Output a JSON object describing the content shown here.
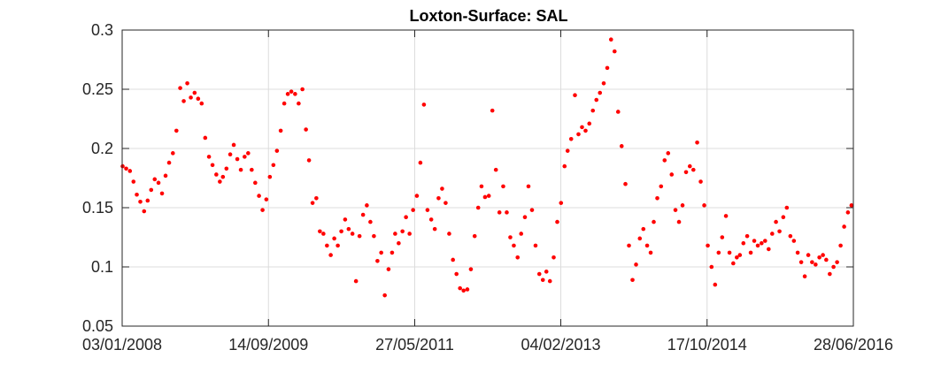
{
  "chart_data": {
    "type": "scatter",
    "title": "Loxton-Surface: SAL",
    "xlabel": "",
    "ylabel": "",
    "x_axis_type": "date",
    "xlim": [
      "2008-01-03",
      "2016-06-28"
    ],
    "ylim": [
      0.05,
      0.3
    ],
    "x_ticks": [
      "2008-01-03",
      "2009-09-14",
      "2011-05-27",
      "2013-02-04",
      "2014-10-17",
      "2016-06-28"
    ],
    "x_tick_labels": [
      "03/01/2008",
      "14/09/2009",
      "27/05/2011",
      "04/02/2013",
      "17/10/2014",
      "28/06/2016"
    ],
    "y_ticks": [
      0.05,
      0.1,
      0.15,
      0.2,
      0.25,
      0.3
    ],
    "y_tick_labels": [
      "0.05",
      "0.1",
      "0.15",
      "0.2",
      "0.25",
      "0.3"
    ],
    "grid": true,
    "marker_color": "#ff0000",
    "series": [
      {
        "points": [
          [
            "2008-01-05",
            0.185
          ],
          [
            "2008-01-20",
            0.183
          ],
          [
            "2008-02-05",
            0.181
          ],
          [
            "2008-02-20",
            0.172
          ],
          [
            "2008-03-05",
            0.161
          ],
          [
            "2008-03-20",
            0.155
          ],
          [
            "2008-04-05",
            0.147
          ],
          [
            "2008-04-20",
            0.156
          ],
          [
            "2008-05-05",
            0.165
          ],
          [
            "2008-05-20",
            0.174
          ],
          [
            "2008-06-05",
            0.171
          ],
          [
            "2008-06-20",
            0.162
          ],
          [
            "2008-07-05",
            0.177
          ],
          [
            "2008-07-20",
            0.188
          ],
          [
            "2008-08-05",
            0.196
          ],
          [
            "2008-08-20",
            0.215
          ],
          [
            "2008-09-05",
            0.251
          ],
          [
            "2008-09-20",
            0.24
          ],
          [
            "2008-10-05",
            0.255
          ],
          [
            "2008-10-20",
            0.243
          ],
          [
            "2008-11-05",
            0.247
          ],
          [
            "2008-11-20",
            0.242
          ],
          [
            "2008-12-05",
            0.238
          ],
          [
            "2008-12-20",
            0.209
          ],
          [
            "2009-01-05",
            0.193
          ],
          [
            "2009-01-20",
            0.186
          ],
          [
            "2009-02-05",
            0.178
          ],
          [
            "2009-02-20",
            0.172
          ],
          [
            "2009-03-05",
            0.176
          ],
          [
            "2009-03-20",
            0.183
          ],
          [
            "2009-04-05",
            0.195
          ],
          [
            "2009-04-20",
            0.203
          ],
          [
            "2009-05-05",
            0.191
          ],
          [
            "2009-05-20",
            0.182
          ],
          [
            "2009-06-05",
            0.193
          ],
          [
            "2009-06-20",
            0.196
          ],
          [
            "2009-07-05",
            0.182
          ],
          [
            "2009-07-20",
            0.171
          ],
          [
            "2009-08-05",
            0.16
          ],
          [
            "2009-08-20",
            0.148
          ],
          [
            "2009-09-05",
            0.157
          ],
          [
            "2009-09-20",
            0.176
          ],
          [
            "2009-10-05",
            0.186
          ],
          [
            "2009-10-20",
            0.198
          ],
          [
            "2009-11-05",
            0.215
          ],
          [
            "2009-11-20",
            0.238
          ],
          [
            "2009-12-05",
            0.246
          ],
          [
            "2009-12-20",
            0.248
          ],
          [
            "2010-01-05",
            0.246
          ],
          [
            "2010-01-20",
            0.238
          ],
          [
            "2010-02-05",
            0.25
          ],
          [
            "2010-02-20",
            0.216
          ],
          [
            "2010-03-05",
            0.19
          ],
          [
            "2010-03-20",
            0.154
          ],
          [
            "2010-04-05",
            0.158
          ],
          [
            "2010-04-20",
            0.13
          ],
          [
            "2010-05-05",
            0.128
          ],
          [
            "2010-05-20",
            0.118
          ],
          [
            "2010-06-05",
            0.11
          ],
          [
            "2010-06-20",
            0.124
          ],
          [
            "2010-07-05",
            0.118
          ],
          [
            "2010-07-20",
            0.13
          ],
          [
            "2010-08-05",
            0.14
          ],
          [
            "2010-08-20",
            0.132
          ],
          [
            "2010-09-05",
            0.128
          ],
          [
            "2010-09-20",
            0.088
          ],
          [
            "2010-10-05",
            0.126
          ],
          [
            "2010-10-20",
            0.144
          ],
          [
            "2010-11-05",
            0.152
          ],
          [
            "2010-11-20",
            0.138
          ],
          [
            "2010-12-05",
            0.126
          ],
          [
            "2010-12-20",
            0.105
          ],
          [
            "2011-01-05",
            0.112
          ],
          [
            "2011-01-20",
            0.076
          ],
          [
            "2011-02-05",
            0.098
          ],
          [
            "2011-02-20",
            0.112
          ],
          [
            "2011-03-05",
            0.128
          ],
          [
            "2011-03-20",
            0.12
          ],
          [
            "2011-04-05",
            0.13
          ],
          [
            "2011-04-20",
            0.142
          ],
          [
            "2011-05-05",
            0.128
          ],
          [
            "2011-05-20",
            0.148
          ],
          [
            "2011-06-05",
            0.16
          ],
          [
            "2011-06-20",
            0.188
          ],
          [
            "2011-07-05",
            0.237
          ],
          [
            "2011-07-20",
            0.148
          ],
          [
            "2011-08-05",
            0.14
          ],
          [
            "2011-08-20",
            0.132
          ],
          [
            "2011-09-05",
            0.158
          ],
          [
            "2011-09-20",
            0.166
          ],
          [
            "2011-10-05",
            0.154
          ],
          [
            "2011-10-20",
            0.128
          ],
          [
            "2011-11-05",
            0.106
          ],
          [
            "2011-11-20",
            0.094
          ],
          [
            "2011-12-05",
            0.082
          ],
          [
            "2011-12-20",
            0.08
          ],
          [
            "2012-01-05",
            0.081
          ],
          [
            "2012-01-20",
            0.098
          ],
          [
            "2012-02-05",
            0.126
          ],
          [
            "2012-02-20",
            0.15
          ],
          [
            "2012-03-05",
            0.168
          ],
          [
            "2012-03-20",
            0.159
          ],
          [
            "2012-04-05",
            0.16
          ],
          [
            "2012-04-20",
            0.232
          ],
          [
            "2012-05-05",
            0.182
          ],
          [
            "2012-05-20",
            0.146
          ],
          [
            "2012-06-05",
            0.168
          ],
          [
            "2012-06-20",
            0.146
          ],
          [
            "2012-07-05",
            0.125
          ],
          [
            "2012-07-20",
            0.118
          ],
          [
            "2012-08-05",
            0.108
          ],
          [
            "2012-08-20",
            0.128
          ],
          [
            "2012-09-05",
            0.142
          ],
          [
            "2012-09-20",
            0.168
          ],
          [
            "2012-10-05",
            0.148
          ],
          [
            "2012-10-20",
            0.118
          ],
          [
            "2012-11-05",
            0.094
          ],
          [
            "2012-11-20",
            0.089
          ],
          [
            "2012-12-05",
            0.096
          ],
          [
            "2012-12-20",
            0.088
          ],
          [
            "2013-01-05",
            0.108
          ],
          [
            "2013-01-20",
            0.138
          ],
          [
            "2013-02-05",
            0.154
          ],
          [
            "2013-02-20",
            0.185
          ],
          [
            "2013-03-05",
            0.198
          ],
          [
            "2013-03-20",
            0.208
          ],
          [
            "2013-04-05",
            0.245
          ],
          [
            "2013-04-20",
            0.212
          ],
          [
            "2013-05-05",
            0.218
          ],
          [
            "2013-05-20",
            0.215
          ],
          [
            "2013-06-05",
            0.221
          ],
          [
            "2013-06-20",
            0.232
          ],
          [
            "2013-07-05",
            0.241
          ],
          [
            "2013-07-20",
            0.247
          ],
          [
            "2013-08-05",
            0.255
          ],
          [
            "2013-08-20",
            0.268
          ],
          [
            "2013-09-05",
            0.292
          ],
          [
            "2013-09-20",
            0.282
          ],
          [
            "2013-10-05",
            0.231
          ],
          [
            "2013-10-20",
            0.202
          ],
          [
            "2013-11-05",
            0.17
          ],
          [
            "2013-11-20",
            0.118
          ],
          [
            "2013-12-05",
            0.089
          ],
          [
            "2013-12-20",
            0.102
          ],
          [
            "2014-01-05",
            0.124
          ],
          [
            "2014-01-20",
            0.132
          ],
          [
            "2014-02-05",
            0.118
          ],
          [
            "2014-02-20",
            0.112
          ],
          [
            "2014-03-05",
            0.138
          ],
          [
            "2014-03-20",
            0.158
          ],
          [
            "2014-04-05",
            0.168
          ],
          [
            "2014-04-20",
            0.19
          ],
          [
            "2014-05-05",
            0.196
          ],
          [
            "2014-05-20",
            0.178
          ],
          [
            "2014-06-05",
            0.148
          ],
          [
            "2014-06-20",
            0.138
          ],
          [
            "2014-07-05",
            0.152
          ],
          [
            "2014-07-20",
            0.18
          ],
          [
            "2014-08-05",
            0.185
          ],
          [
            "2014-08-20",
            0.182
          ],
          [
            "2014-09-05",
            0.205
          ],
          [
            "2014-09-20",
            0.172
          ],
          [
            "2014-10-05",
            0.152
          ],
          [
            "2014-10-20",
            0.118
          ],
          [
            "2014-11-05",
            0.1
          ],
          [
            "2014-11-20",
            0.085
          ],
          [
            "2014-12-05",
            0.112
          ],
          [
            "2014-12-20",
            0.125
          ],
          [
            "2015-01-05",
            0.143
          ],
          [
            "2015-01-20",
            0.112
          ],
          [
            "2015-02-05",
            0.103
          ],
          [
            "2015-02-20",
            0.108
          ],
          [
            "2015-03-05",
            0.11
          ],
          [
            "2015-03-20",
            0.12
          ],
          [
            "2015-04-05",
            0.126
          ],
          [
            "2015-04-20",
            0.112
          ],
          [
            "2015-05-05",
            0.122
          ],
          [
            "2015-05-20",
            0.118
          ],
          [
            "2015-06-05",
            0.12
          ],
          [
            "2015-06-20",
            0.122
          ],
          [
            "2015-07-05",
            0.115
          ],
          [
            "2015-07-20",
            0.128
          ],
          [
            "2015-08-05",
            0.138
          ],
          [
            "2015-08-20",
            0.13
          ],
          [
            "2015-09-05",
            0.142
          ],
          [
            "2015-09-20",
            0.15
          ],
          [
            "2015-10-05",
            0.126
          ],
          [
            "2015-10-20",
            0.122
          ],
          [
            "2015-11-05",
            0.112
          ],
          [
            "2015-11-20",
            0.104
          ],
          [
            "2015-12-05",
            0.092
          ],
          [
            "2015-12-20",
            0.11
          ],
          [
            "2016-01-05",
            0.104
          ],
          [
            "2016-01-20",
            0.102
          ],
          [
            "2016-02-05",
            0.108
          ],
          [
            "2016-02-20",
            0.11
          ],
          [
            "2016-03-05",
            0.106
          ],
          [
            "2016-03-20",
            0.094
          ],
          [
            "2016-04-05",
            0.1
          ],
          [
            "2016-04-20",
            0.104
          ],
          [
            "2016-05-05",
            0.118
          ],
          [
            "2016-05-20",
            0.134
          ],
          [
            "2016-06-05",
            0.146
          ],
          [
            "2016-06-20",
            0.152
          ]
        ]
      }
    ]
  }
}
